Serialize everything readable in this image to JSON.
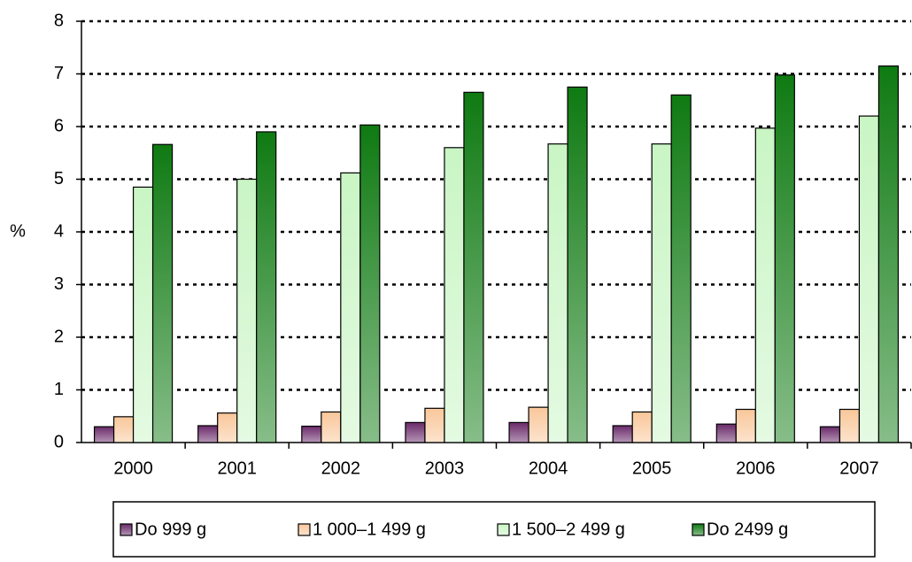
{
  "chart_data": {
    "type": "bar",
    "y_label": "%",
    "categories": [
      "2000",
      "2001",
      "2002",
      "2003",
      "2004",
      "2005",
      "2006",
      "2007"
    ],
    "series": [
      {
        "name": "Do 999 g",
        "color": "#6a2a6a",
        "values": [
          0.3,
          0.32,
          0.31,
          0.38,
          0.38,
          0.32,
          0.35,
          0.3
        ]
      },
      {
        "name": "1 000–1 499 g",
        "color": "#f9c79a",
        "values": [
          0.49,
          0.56,
          0.58,
          0.65,
          0.67,
          0.58,
          0.63,
          0.63
        ]
      },
      {
        "name": "1 500–2 499 g",
        "color": "#c9f5c4",
        "values": [
          4.85,
          5.0,
          5.12,
          5.6,
          5.67,
          5.67,
          5.97,
          6.2
        ]
      },
      {
        "name": "Do 2499 g",
        "color": "#0f7a12",
        "values": [
          5.66,
          5.9,
          6.03,
          6.65,
          6.75,
          6.6,
          6.98,
          7.15
        ]
      }
    ],
    "ylim": [
      0,
      8
    ],
    "yticks": [
      0,
      1,
      2,
      3,
      4,
      5,
      6,
      7,
      8
    ],
    "grid": true,
    "legend": "bottom"
  }
}
